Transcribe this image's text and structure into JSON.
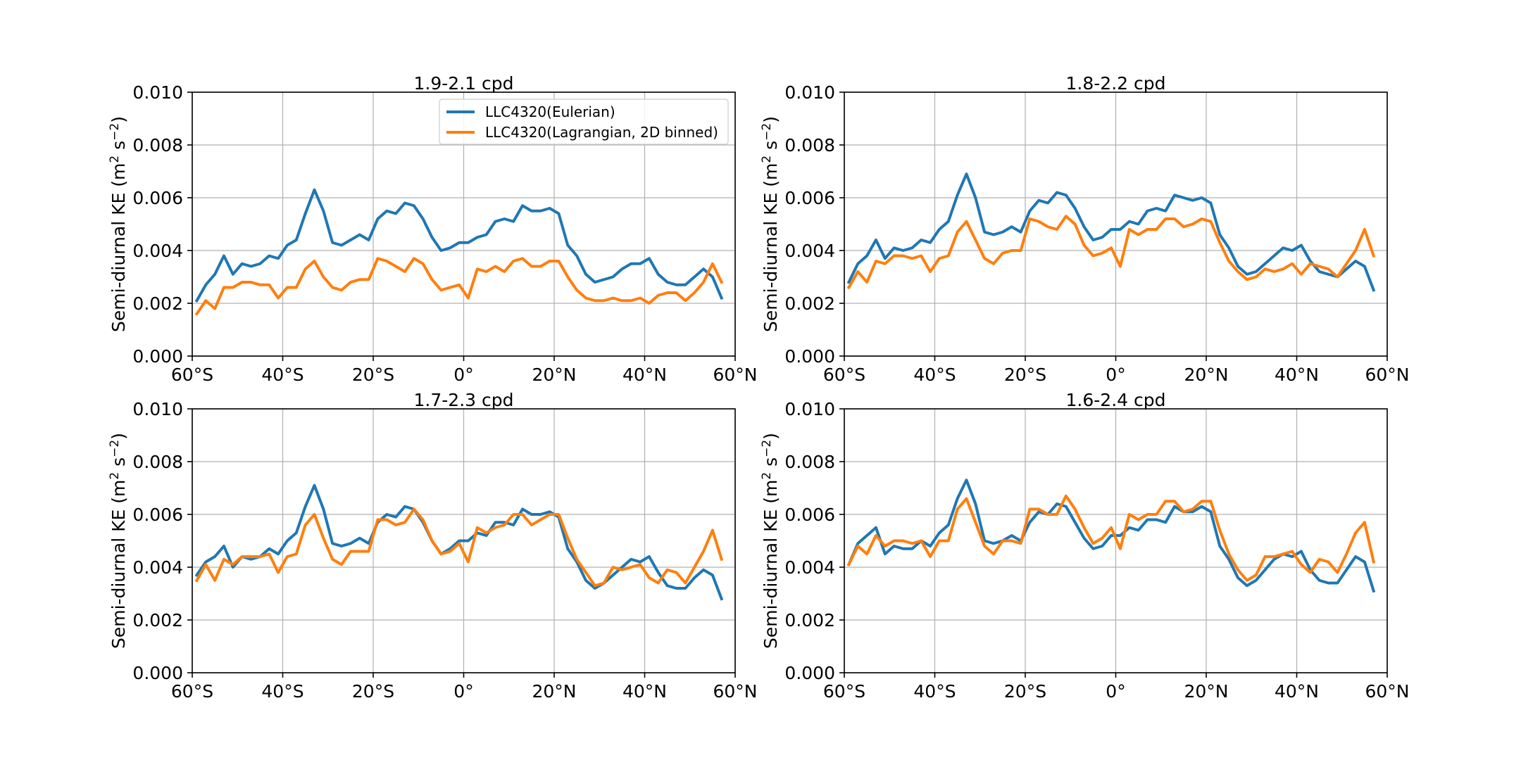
{
  "colors": {
    "eulerian": "#1f77b4",
    "lagrangian": "#ff7f0e",
    "grid": "#b0b0b0",
    "axes": "#000000"
  },
  "chart_data": [
    {
      "type": "line",
      "title": "1.9-2.1 cpd",
      "ylabel": "Semi-diurnal KE (m$^2$ s$^{-2}$)",
      "ylabel_main": "Semi-diurnal KE (m",
      "ylabel_mid": " s",
      "ylabel_end": ")",
      "ylabel_sup1": "2",
      "ylabel_sup2": "−2",
      "xlim": [
        -60,
        60
      ],
      "ylim": [
        0,
        0.01
      ],
      "grid": true,
      "legend": "upper-center",
      "xticks": [
        -60,
        -40,
        -20,
        0,
        20,
        40,
        60
      ],
      "xticklabels": [
        "60°S",
        "40°S",
        "20°S",
        "0°",
        "20°N",
        "40°N",
        "60°N"
      ],
      "yticks": [
        0,
        0.002,
        0.004,
        0.006,
        0.008,
        0.01
      ],
      "yticklabels": [
        "0.000",
        "0.002",
        "0.004",
        "0.006",
        "0.008",
        "0.010"
      ],
      "x": [
        -59,
        -57,
        -55,
        -53,
        -51,
        -49,
        -47,
        -45,
        -43,
        -41,
        -39,
        -37,
        -35,
        -33,
        -31,
        -29,
        -27,
        -25,
        -23,
        -21,
        -19,
        -17,
        -15,
        -13,
        -11,
        -9,
        -7,
        -5,
        -3,
        -1,
        1,
        3,
        5,
        7,
        9,
        11,
        13,
        15,
        17,
        19,
        21,
        23,
        25,
        27,
        29,
        31,
        33,
        35,
        37,
        39,
        41,
        43,
        45,
        47,
        49,
        51,
        53,
        55,
        57
      ],
      "series": [
        {
          "name": "LLC4320(Eulerian)",
          "values": [
            0.0021,
            0.0027,
            0.0031,
            0.0038,
            0.0031,
            0.0035,
            0.0034,
            0.0035,
            0.0038,
            0.0037,
            0.0042,
            0.0044,
            0.0054,
            0.0063,
            0.0055,
            0.0043,
            0.0042,
            0.0044,
            0.0046,
            0.0044,
            0.0052,
            0.0055,
            0.0054,
            0.0058,
            0.0057,
            0.0052,
            0.0045,
            0.004,
            0.0041,
            0.0043,
            0.0043,
            0.0045,
            0.0046,
            0.0051,
            0.0052,
            0.0051,
            0.0057,
            0.0055,
            0.0055,
            0.0056,
            0.0054,
            0.0042,
            0.0038,
            0.0031,
            0.0028,
            0.0029,
            0.003,
            0.0033,
            0.0035,
            0.0035,
            0.0037,
            0.0031,
            0.0028,
            0.0027,
            0.0027,
            0.003,
            0.0033,
            0.003,
            0.0022
          ]
        },
        {
          "name": "LLC4320(Lagrangian, 2D binned)",
          "values": [
            0.0016,
            0.0021,
            0.0018,
            0.0026,
            0.0026,
            0.0028,
            0.0028,
            0.0027,
            0.0027,
            0.0022,
            0.0026,
            0.0026,
            0.0033,
            0.0036,
            0.003,
            0.0026,
            0.0025,
            0.0028,
            0.0029,
            0.0029,
            0.0037,
            0.0036,
            0.0034,
            0.0032,
            0.0037,
            0.0035,
            0.0029,
            0.0025,
            0.0026,
            0.0027,
            0.0022,
            0.0033,
            0.0032,
            0.0034,
            0.0032,
            0.0036,
            0.0037,
            0.0034,
            0.0034,
            0.0036,
            0.0036,
            0.003,
            0.0025,
            0.0022,
            0.0021,
            0.0021,
            0.0022,
            0.0021,
            0.0021,
            0.0022,
            0.002,
            0.0023,
            0.0024,
            0.0024,
            0.0021,
            0.0024,
            0.0028,
            0.0035,
            0.0028
          ]
        }
      ]
    },
    {
      "type": "line",
      "title": "1.8-2.2 cpd",
      "ylabel_main": "Semi-diurnal KE (m",
      "ylabel_mid": " s",
      "ylabel_end": ")",
      "ylabel_sup1": "2",
      "ylabel_sup2": "−2",
      "xlim": [
        -60,
        60
      ],
      "ylim": [
        0,
        0.01
      ],
      "grid": true,
      "xticks": [
        -60,
        -40,
        -20,
        0,
        20,
        40,
        60
      ],
      "xticklabels": [
        "60°S",
        "40°S",
        "20°S",
        "0°",
        "20°N",
        "40°N",
        "60°N"
      ],
      "yticks": [
        0,
        0.002,
        0.004,
        0.006,
        0.008,
        0.01
      ],
      "yticklabels": [
        "0.000",
        "0.002",
        "0.004",
        "0.006",
        "0.008",
        "0.010"
      ],
      "x": [
        -59,
        -57,
        -55,
        -53,
        -51,
        -49,
        -47,
        -45,
        -43,
        -41,
        -39,
        -37,
        -35,
        -33,
        -31,
        -29,
        -27,
        -25,
        -23,
        -21,
        -19,
        -17,
        -15,
        -13,
        -11,
        -9,
        -7,
        -5,
        -3,
        -1,
        1,
        3,
        5,
        7,
        9,
        11,
        13,
        15,
        17,
        19,
        21,
        23,
        25,
        27,
        29,
        31,
        33,
        35,
        37,
        39,
        41,
        43,
        45,
        47,
        49,
        51,
        53,
        55,
        57
      ],
      "series": [
        {
          "name": "LLC4320(Eulerian)",
          "values": [
            0.0028,
            0.0035,
            0.0038,
            0.0044,
            0.0037,
            0.0041,
            0.004,
            0.0041,
            0.0044,
            0.0043,
            0.0048,
            0.0051,
            0.0061,
            0.0069,
            0.006,
            0.0047,
            0.0046,
            0.0047,
            0.0049,
            0.0047,
            0.0055,
            0.0059,
            0.0058,
            0.0062,
            0.0061,
            0.0056,
            0.0049,
            0.0044,
            0.0045,
            0.0048,
            0.0048,
            0.0051,
            0.005,
            0.0055,
            0.0056,
            0.0055,
            0.0061,
            0.006,
            0.0059,
            0.006,
            0.0058,
            0.0046,
            0.0041,
            0.0034,
            0.0031,
            0.0032,
            0.0035,
            0.0038,
            0.0041,
            0.004,
            0.0042,
            0.0036,
            0.0032,
            0.0031,
            0.003,
            0.0033,
            0.0036,
            0.0034,
            0.0025
          ]
        },
        {
          "name": "LLC4320(Lagrangian, 2D binned)",
          "values": [
            0.0026,
            0.0032,
            0.0028,
            0.0036,
            0.0035,
            0.0038,
            0.0038,
            0.0037,
            0.0038,
            0.0032,
            0.0037,
            0.0038,
            0.0047,
            0.0051,
            0.0044,
            0.0037,
            0.0035,
            0.0039,
            0.004,
            0.004,
            0.0052,
            0.0051,
            0.0049,
            0.0048,
            0.0053,
            0.005,
            0.0042,
            0.0038,
            0.0039,
            0.0041,
            0.0034,
            0.0048,
            0.0046,
            0.0048,
            0.0048,
            0.0052,
            0.0052,
            0.0049,
            0.005,
            0.0052,
            0.0051,
            0.0043,
            0.0036,
            0.0032,
            0.0029,
            0.003,
            0.0033,
            0.0032,
            0.0033,
            0.0035,
            0.0031,
            0.0035,
            0.0034,
            0.0033,
            0.003,
            0.0035,
            0.004,
            0.0048,
            0.0038
          ]
        }
      ]
    },
    {
      "type": "line",
      "title": "1.7-2.3 cpd",
      "ylabel_main": "Semi-diurnal KE (m",
      "ylabel_mid": " s",
      "ylabel_end": ")",
      "ylabel_sup1": "2",
      "ylabel_sup2": "−2",
      "xlim": [
        -60,
        60
      ],
      "ylim": [
        0,
        0.01
      ],
      "grid": true,
      "xticks": [
        -60,
        -40,
        -20,
        0,
        20,
        40,
        60
      ],
      "xticklabels": [
        "60°S",
        "40°S",
        "20°S",
        "0°",
        "20°N",
        "40°N",
        "60°N"
      ],
      "yticks": [
        0,
        0.002,
        0.004,
        0.006,
        0.008,
        0.01
      ],
      "yticklabels": [
        "0.000",
        "0.002",
        "0.004",
        "0.006",
        "0.008",
        "0.010"
      ],
      "x": [
        -59,
        -57,
        -55,
        -53,
        -51,
        -49,
        -47,
        -45,
        -43,
        -41,
        -39,
        -37,
        -35,
        -33,
        -31,
        -29,
        -27,
        -25,
        -23,
        -21,
        -19,
        -17,
        -15,
        -13,
        -11,
        -9,
        -7,
        -5,
        -3,
        -1,
        1,
        3,
        5,
        7,
        9,
        11,
        13,
        15,
        17,
        19,
        21,
        23,
        25,
        27,
        29,
        31,
        33,
        35,
        37,
        39,
        41,
        43,
        45,
        47,
        49,
        51,
        53,
        55,
        57
      ],
      "series": [
        {
          "name": "LLC4320(Eulerian)",
          "values": [
            0.0037,
            0.0042,
            0.0044,
            0.0048,
            0.004,
            0.0044,
            0.0043,
            0.0044,
            0.0047,
            0.0045,
            0.005,
            0.0053,
            0.0063,
            0.0071,
            0.0062,
            0.0049,
            0.0048,
            0.0049,
            0.0051,
            0.0049,
            0.0057,
            0.006,
            0.0059,
            0.0063,
            0.0062,
            0.0057,
            0.005,
            0.0045,
            0.0047,
            0.005,
            0.005,
            0.0053,
            0.0052,
            0.0057,
            0.0057,
            0.0056,
            0.0062,
            0.006,
            0.006,
            0.0061,
            0.0059,
            0.0047,
            0.0042,
            0.0035,
            0.0032,
            0.0034,
            0.0037,
            0.004,
            0.0043,
            0.0042,
            0.0044,
            0.0038,
            0.0033,
            0.0032,
            0.0032,
            0.0036,
            0.0039,
            0.0037,
            0.0028
          ]
        },
        {
          "name": "LLC4320(Lagrangian, 2D binned)",
          "values": [
            0.0035,
            0.0041,
            0.0035,
            0.0043,
            0.0041,
            0.0044,
            0.0044,
            0.0044,
            0.0045,
            0.0038,
            0.0044,
            0.0045,
            0.0056,
            0.006,
            0.0051,
            0.0043,
            0.0041,
            0.0046,
            0.0046,
            0.0046,
            0.0058,
            0.0058,
            0.0056,
            0.0057,
            0.0062,
            0.0058,
            0.005,
            0.0045,
            0.0046,
            0.0049,
            0.0042,
            0.0055,
            0.0053,
            0.0055,
            0.0056,
            0.006,
            0.006,
            0.0056,
            0.0058,
            0.006,
            0.006,
            0.0051,
            0.0043,
            0.0038,
            0.0033,
            0.0034,
            0.004,
            0.0039,
            0.004,
            0.0041,
            0.0036,
            0.0034,
            0.0039,
            0.0038,
            0.0034,
            0.004,
            0.0046,
            0.0054,
            0.0043
          ]
        }
      ]
    },
    {
      "type": "line",
      "title": "1.6-2.4 cpd",
      "ylabel_main": "Semi-diurnal KE (m",
      "ylabel_mid": " s",
      "ylabel_end": ")",
      "ylabel_sup1": "2",
      "ylabel_sup2": "−2",
      "xlim": [
        -60,
        60
      ],
      "ylim": [
        0,
        0.01
      ],
      "grid": true,
      "xticks": [
        -60,
        -40,
        -20,
        0,
        20,
        40,
        60
      ],
      "xticklabels": [
        "60°S",
        "40°S",
        "20°S",
        "0°",
        "20°N",
        "40°N",
        "60°N"
      ],
      "yticks": [
        0,
        0.002,
        0.004,
        0.006,
        0.008,
        0.01
      ],
      "yticklabels": [
        "0.000",
        "0.002",
        "0.004",
        "0.006",
        "0.008",
        "0.010"
      ],
      "x": [
        -59,
        -57,
        -55,
        -53,
        -51,
        -49,
        -47,
        -45,
        -43,
        -41,
        -39,
        -37,
        -35,
        -33,
        -31,
        -29,
        -27,
        -25,
        -23,
        -21,
        -19,
        -17,
        -15,
        -13,
        -11,
        -9,
        -7,
        -5,
        -3,
        -1,
        1,
        3,
        5,
        7,
        9,
        11,
        13,
        15,
        17,
        19,
        21,
        23,
        25,
        27,
        29,
        31,
        33,
        35,
        37,
        39,
        41,
        43,
        45,
        47,
        49,
        51,
        53,
        55,
        57
      ],
      "series": [
        {
          "name": "LLC4320(Eulerian)",
          "values": [
            0.0041,
            0.0049,
            0.0052,
            0.0055,
            0.0045,
            0.0048,
            0.0047,
            0.0047,
            0.005,
            0.0048,
            0.0053,
            0.0056,
            0.0066,
            0.0073,
            0.0064,
            0.005,
            0.0049,
            0.005,
            0.0052,
            0.005,
            0.0057,
            0.0061,
            0.006,
            0.0064,
            0.0063,
            0.0057,
            0.0051,
            0.0047,
            0.0048,
            0.0052,
            0.0052,
            0.0055,
            0.0054,
            0.0058,
            0.0058,
            0.0057,
            0.0063,
            0.0061,
            0.0061,
            0.0063,
            0.0061,
            0.0048,
            0.0043,
            0.0036,
            0.0033,
            0.0035,
            0.0039,
            0.0043,
            0.0045,
            0.0044,
            0.0046,
            0.0039,
            0.0035,
            0.0034,
            0.0034,
            0.0039,
            0.0044,
            0.0042,
            0.0031
          ]
        },
        {
          "name": "LLC4320(Lagrangian, 2D binned)",
          "values": [
            0.0041,
            0.0048,
            0.0045,
            0.0052,
            0.0048,
            0.005,
            0.005,
            0.0049,
            0.005,
            0.0044,
            0.005,
            0.005,
            0.0062,
            0.0066,
            0.0057,
            0.0048,
            0.0045,
            0.005,
            0.005,
            0.0049,
            0.0062,
            0.0062,
            0.006,
            0.006,
            0.0067,
            0.0062,
            0.0055,
            0.0049,
            0.0051,
            0.0055,
            0.0047,
            0.006,
            0.0058,
            0.006,
            0.006,
            0.0065,
            0.0065,
            0.0061,
            0.0062,
            0.0065,
            0.0065,
            0.0054,
            0.0045,
            0.0039,
            0.0035,
            0.0037,
            0.0044,
            0.0044,
            0.0045,
            0.0046,
            0.0041,
            0.0038,
            0.0043,
            0.0042,
            0.0038,
            0.0045,
            0.0053,
            0.0057,
            0.0042
          ]
        }
      ]
    }
  ]
}
